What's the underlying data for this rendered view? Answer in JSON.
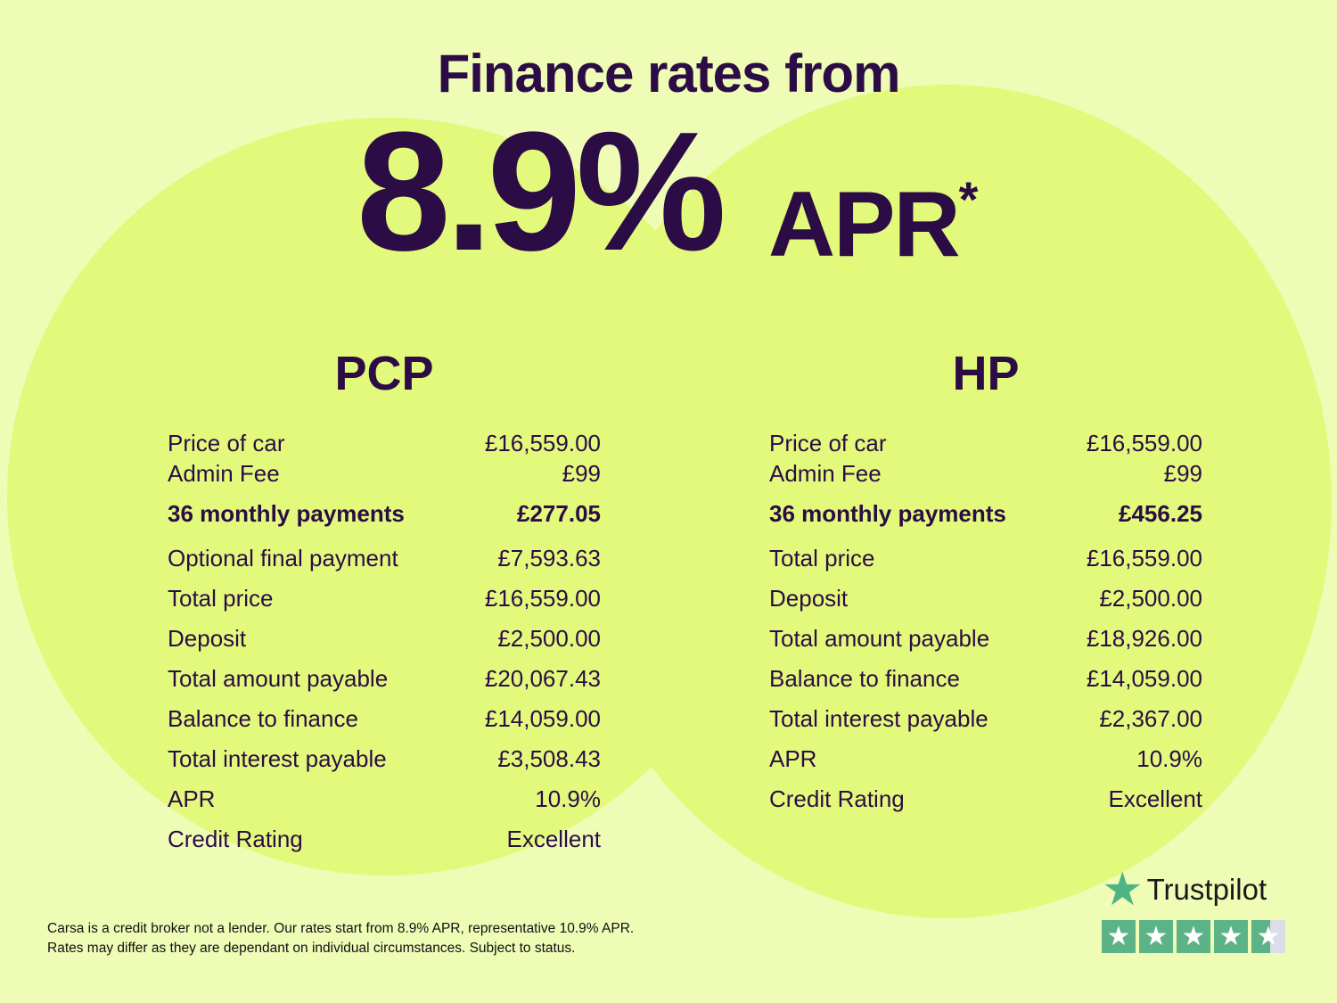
{
  "headline": "Finance rates from",
  "rate": "8.9%",
  "rate_suffix": "APR",
  "asterisk": "*",
  "plans": [
    {
      "name": "PCP",
      "rows": [
        {
          "label": "Price of car",
          "value": "£16,559.00"
        },
        {
          "label": "Admin Fee",
          "value": "£99"
        },
        {
          "label": "36 monthly payments",
          "value": "£277.05"
        },
        {
          "label": "Optional final payment",
          "value": "£7,593.63"
        },
        {
          "label": "Total price",
          "value": "£16,559.00"
        },
        {
          "label": "Deposit",
          "value": "£2,500.00"
        },
        {
          "label": "Total amount payable",
          "value": "£20,067.43"
        },
        {
          "label": "Balance to finance",
          "value": "£14,059.00"
        },
        {
          "label": "Total interest payable",
          "value": "£3,508.43"
        },
        {
          "label": "APR",
          "value": "10.9%"
        },
        {
          "label": "Credit Rating",
          "value": "Excellent"
        }
      ]
    },
    {
      "name": "HP",
      "rows": [
        {
          "label": "Price of car",
          "value": "£16,559.00"
        },
        {
          "label": "Admin Fee",
          "value": "£99"
        },
        {
          "label": "36 monthly payments",
          "value": "£456.25"
        },
        {
          "label": "Total price",
          "value": "£16,559.00"
        },
        {
          "label": "Deposit",
          "value": "£2,500.00"
        },
        {
          "label": "Total amount payable",
          "value": "£18,926.00"
        },
        {
          "label": "Balance to finance",
          "value": "£14,059.00"
        },
        {
          "label": "Total interest payable",
          "value": "£2,367.00"
        },
        {
          "label": "APR",
          "value": "10.9%"
        },
        {
          "label": "Credit Rating",
          "value": "Excellent"
        }
      ]
    }
  ],
  "disclaimer": [
    "Carsa is a credit broker not a lender. Our rates start from 8.9% APR, representative 10.9% APR.",
    "Rates may differ as they are dependant on individual circumstances. Subject to status."
  ],
  "trustpilot": {
    "label": "Trustpilot",
    "rating_stars": 4.5,
    "max_stars": 5,
    "color": "#5bb387"
  },
  "colors": {
    "text": "#2b0c45",
    "background": "#eefcb6",
    "circle": "#e3f97c"
  }
}
